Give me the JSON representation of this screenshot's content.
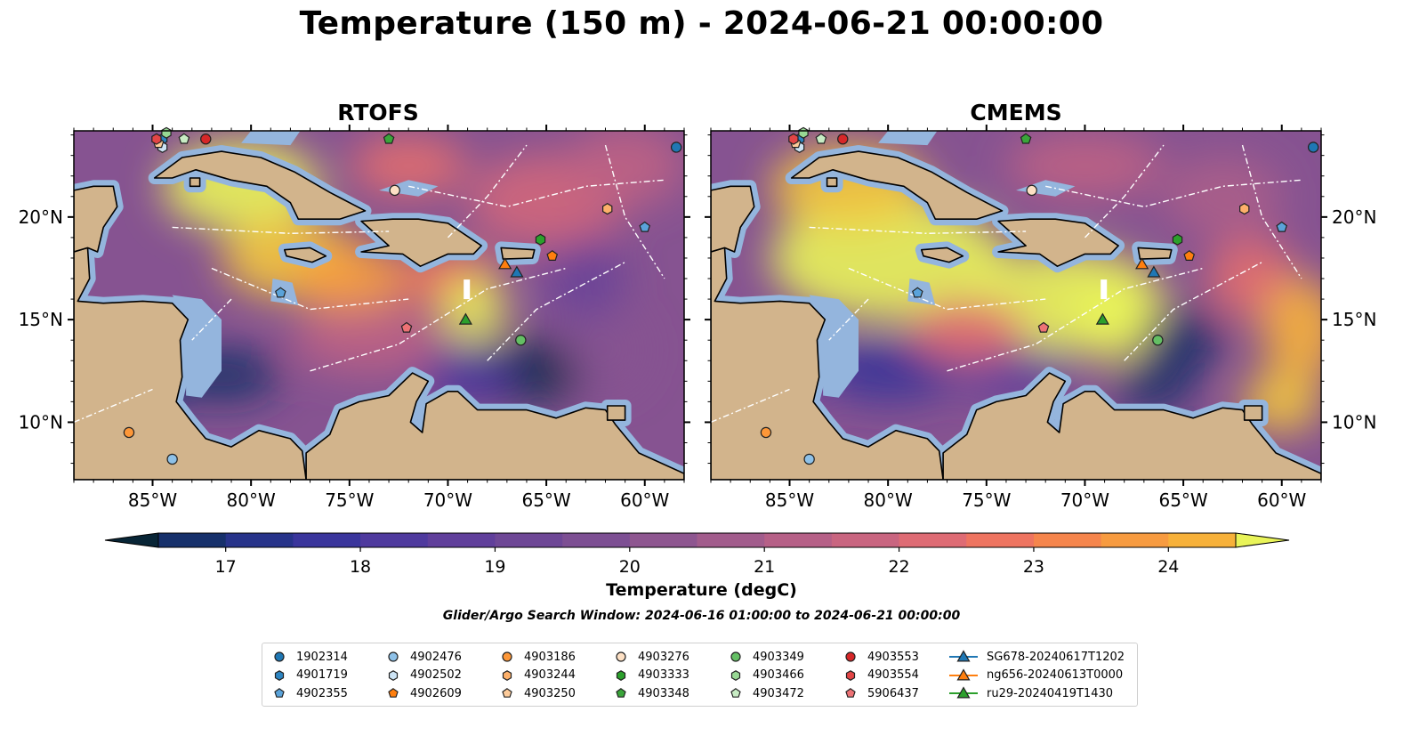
{
  "title": "Temperature (150 m) - 2024-06-21 00:00:00",
  "panels": [
    {
      "title": "RTOFS"
    },
    {
      "title": "CMEMS"
    }
  ],
  "axes": {
    "lon_ticks": [
      "85°W",
      "80°W",
      "75°W",
      "70°W",
      "65°W",
      "60°W"
    ],
    "lat_ticks": [
      "20°N",
      "15°N",
      "10°N"
    ]
  },
  "colorbar": {
    "label": "Temperature (degC)",
    "ticks": [
      "17",
      "18",
      "19",
      "20",
      "21",
      "22",
      "23",
      "24"
    ],
    "range": [
      16.5,
      24.5
    ],
    "step": 0.5,
    "colors": [
      "#082536",
      "#0d2b4f",
      "#16306b",
      "#27338a",
      "#3a359c",
      "#4f3a9e",
      "#603f9b",
      "#6e4796",
      "#7d4f93",
      "#8e5690",
      "#a25c8c",
      "#b66087",
      "#c96580",
      "#de6b74",
      "#ee7460",
      "#f5854c",
      "#f79b40",
      "#f7b13a",
      "#f3c63c",
      "#e9f459"
    ]
  },
  "search_window": "Glider/Argo Search Window: 2024-06-16 01:00:00 to 2024-06-21 00:00:00",
  "colors": {
    "land": "#d2b48c",
    "shallow": "#94b5dd",
    "deep_pacific": "#082536",
    "boundary": "#ffffff"
  },
  "legend": {
    "columns": [
      [
        {
          "label": "1902314",
          "marker": "circle",
          "color": "#1f77b4"
        },
        {
          "label": "4901719",
          "marker": "hexagon",
          "color": "#2d85c2"
        },
        {
          "label": "4902355",
          "marker": "pentagon",
          "color": "#5aa3da"
        }
      ],
      [
        {
          "label": "4902476",
          "marker": "circle",
          "color": "#8ec1e8"
        },
        {
          "label": "4902502",
          "marker": "hexagon",
          "color": "#cde4f5"
        },
        {
          "label": "4902609",
          "marker": "pentagon",
          "color": "#ff7f0e"
        }
      ],
      [
        {
          "label": "4903186",
          "marker": "circle",
          "color": "#fd9738"
        },
        {
          "label": "4903244",
          "marker": "hexagon",
          "color": "#fdb06a"
        },
        {
          "label": "4903250",
          "marker": "pentagon",
          "color": "#fdcb9a"
        }
      ],
      [
        {
          "label": "4903276",
          "marker": "circle",
          "color": "#fde0c4"
        },
        {
          "label": "4903333",
          "marker": "hexagon",
          "color": "#2ca02c"
        },
        {
          "label": "4903348",
          "marker": "pentagon",
          "color": "#3aa53a"
        }
      ],
      [
        {
          "label": "4903349",
          "marker": "circle",
          "color": "#64bf64"
        },
        {
          "label": "4903466",
          "marker": "hexagon",
          "color": "#98d894"
        },
        {
          "label": "4903472",
          "marker": "pentagon",
          "color": "#c8ecc4"
        }
      ],
      [
        {
          "label": "4903553",
          "marker": "circle",
          "color": "#d62728"
        },
        {
          "label": "4903554",
          "marker": "hexagon",
          "color": "#e34546"
        },
        {
          "label": "5906437",
          "marker": "pentagon",
          "color": "#ed7275"
        }
      ],
      [
        {
          "label": "SG678-20240617T1202",
          "marker": "triangle",
          "color": "#1f77b4"
        },
        {
          "label": "ng656-20240613T0000",
          "marker": "triangle",
          "color": "#ff7f0e"
        },
        {
          "label": "ru29-20240419T1430",
          "marker": "triangle",
          "color": "#2ca02c"
        }
      ]
    ]
  }
}
